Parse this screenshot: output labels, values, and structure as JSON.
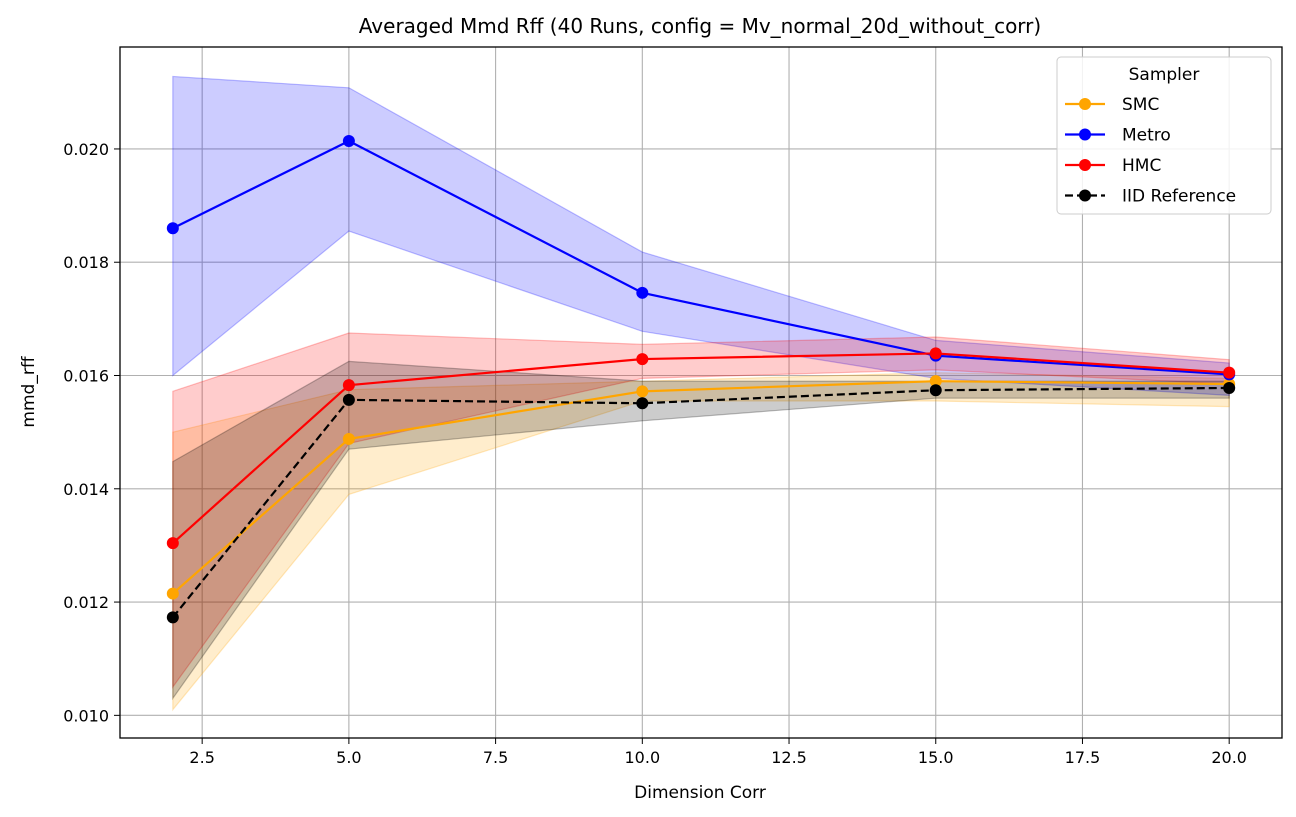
{
  "chart_data": {
    "type": "line",
    "title": "Averaged Mmd Rff (40 Runs, config = Mv_normal_20d_without_corr)",
    "xlabel": "Dimension Corr",
    "ylabel": "mmd_rff",
    "x": [
      2,
      5,
      10,
      15,
      20
    ],
    "xlim": [
      1.1,
      20.9
    ],
    "ylim": [
      0.0096,
      0.0218
    ],
    "xticks": [
      2.5,
      5.0,
      7.5,
      10.0,
      12.5,
      15.0,
      17.5,
      20.0
    ],
    "xtick_labels": [
      "2.5",
      "5.0",
      "7.5",
      "10.0",
      "12.5",
      "15.0",
      "17.5",
      "20.0"
    ],
    "yticks": [
      0.01,
      0.012,
      0.014,
      0.016,
      0.018,
      0.02
    ],
    "ytick_labels": [
      "0.010",
      "0.012",
      "0.014",
      "0.016",
      "0.018",
      "0.020"
    ],
    "grid": true,
    "legend": {
      "title": "Sampler",
      "placement": "top-right"
    },
    "series": [
      {
        "name": "SMC",
        "color": "#ffa500",
        "dashed": false,
        "values": [
          0.01215,
          0.01488,
          0.01572,
          0.0159,
          0.01585
        ],
        "lower": [
          0.0101,
          0.0139,
          0.01555,
          0.01555,
          0.01545
        ],
        "upper": [
          0.015,
          0.01575,
          0.0159,
          0.01605,
          0.01595
        ]
      },
      {
        "name": "Metro",
        "color": "#0000ff",
        "dashed": false,
        "values": [
          0.0186,
          0.02014,
          0.01746,
          0.01635,
          0.01602
        ],
        "lower": [
          0.016,
          0.01855,
          0.01678,
          0.01595,
          0.01565
        ],
        "upper": [
          0.02128,
          0.02108,
          0.01818,
          0.01662,
          0.01622
        ]
      },
      {
        "name": "HMC",
        "color": "#ff0000",
        "dashed": false,
        "values": [
          0.01304,
          0.01583,
          0.01629,
          0.01639,
          0.01605
        ],
        "lower": [
          0.0105,
          0.0148,
          0.01595,
          0.0161,
          0.01585
        ],
        "upper": [
          0.01572,
          0.01675,
          0.01655,
          0.01668,
          0.01628
        ]
      },
      {
        "name": "IID Reference",
        "color": "#000000",
        "dashed": true,
        "values": [
          0.01173,
          0.01557,
          0.01551,
          0.01574,
          0.01578
        ],
        "lower": [
          0.0103,
          0.0147,
          0.0152,
          0.0156,
          0.0156
        ],
        "upper": [
          0.01448,
          0.01625,
          0.0159,
          0.0159,
          0.0159
        ]
      }
    ]
  }
}
